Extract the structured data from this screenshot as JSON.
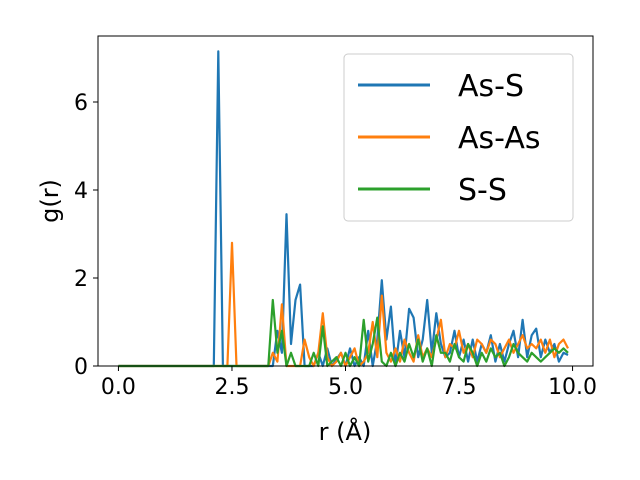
{
  "chart_data": {
    "type": "line",
    "xlabel": "r (Å)",
    "ylabel": "g(r)",
    "xlim": [
      -0.45,
      10.45
    ],
    "ylim": [
      0,
      7.5
    ],
    "xticks": [
      0.0,
      2.5,
      5.0,
      7.5,
      10.0
    ],
    "xtick_labels": [
      "0.0",
      "2.5",
      "5.0",
      "7.5",
      "10.0"
    ],
    "yticks": [
      0,
      2,
      4,
      6
    ],
    "ytick_labels": [
      "0",
      "2",
      "4",
      "6"
    ],
    "grid": false,
    "legend_position": "upper right",
    "series": [
      {
        "name": "As-S",
        "color": "#1f77b4",
        "points": [
          [
            0,
            0
          ],
          [
            2.05,
            0
          ],
          [
            2.1,
            0
          ],
          [
            2.2,
            7.15
          ],
          [
            2.3,
            0
          ],
          [
            2.4,
            0
          ],
          [
            3.4,
            0
          ],
          [
            3.5,
            0.8
          ],
          [
            3.6,
            0.3
          ],
          [
            3.7,
            3.45
          ],
          [
            3.8,
            0.5
          ],
          [
            3.9,
            1.5
          ],
          [
            4.0,
            1.85
          ],
          [
            4.1,
            0
          ],
          [
            4.3,
            0
          ],
          [
            4.4,
            0.3
          ],
          [
            4.5,
            0
          ],
          [
            4.6,
            0.4
          ],
          [
            4.7,
            0
          ],
          [
            4.9,
            0.3
          ],
          [
            5.0,
            0
          ],
          [
            5.1,
            0.4
          ],
          [
            5.2,
            0
          ],
          [
            5.3,
            0.2
          ],
          [
            5.4,
            0
          ],
          [
            5.5,
            0.8
          ],
          [
            5.6,
            0
          ],
          [
            5.7,
            0.6
          ],
          [
            5.8,
            1.95
          ],
          [
            5.9,
            0.6
          ],
          [
            6.0,
            1.35
          ],
          [
            6.1,
            0
          ],
          [
            6.2,
            0.8
          ],
          [
            6.3,
            0.2
          ],
          [
            6.4,
            1.3
          ],
          [
            6.5,
            1.1
          ],
          [
            6.6,
            0.2
          ],
          [
            6.7,
            0.6
          ],
          [
            6.8,
            1.5
          ],
          [
            6.9,
            0.3
          ],
          [
            7.0,
            1.2
          ],
          [
            7.1,
            0.5
          ],
          [
            7.2,
            0.2
          ],
          [
            7.3,
            0.3
          ],
          [
            7.4,
            0.8
          ],
          [
            7.5,
            0.2
          ],
          [
            7.6,
            0.6
          ],
          [
            7.7,
            0.1
          ],
          [
            7.8,
            0.6
          ],
          [
            7.9,
            0.1
          ],
          [
            8.0,
            0.5
          ],
          [
            8.1,
            0.3
          ],
          [
            8.2,
            0.7
          ],
          [
            8.3,
            0.1
          ],
          [
            8.4,
            0.5
          ],
          [
            8.5,
            0.1
          ],
          [
            8.6,
            0.5
          ],
          [
            8.7,
            0.8
          ],
          [
            8.8,
            0.2
          ],
          [
            8.9,
            1.05
          ],
          [
            9.0,
            0.2
          ],
          [
            9.1,
            0.7
          ],
          [
            9.2,
            0.85
          ],
          [
            9.3,
            0.2
          ],
          [
            9.4,
            0.6
          ],
          [
            9.5,
            0.3
          ],
          [
            9.6,
            0.5
          ],
          [
            9.7,
            0.1
          ],
          [
            9.8,
            0.3
          ],
          [
            9.9,
            0.25
          ]
        ]
      },
      {
        "name": "As-As",
        "color": "#ff7f0e",
        "points": [
          [
            0,
            0
          ],
          [
            2.4,
            0
          ],
          [
            2.5,
            2.8
          ],
          [
            2.6,
            0
          ],
          [
            2.7,
            0
          ],
          [
            3.3,
            0
          ],
          [
            3.4,
            0.3
          ],
          [
            3.5,
            0.1
          ],
          [
            3.6,
            1.4
          ],
          [
            3.7,
            0
          ],
          [
            3.8,
            0
          ],
          [
            4.0,
            0
          ],
          [
            4.1,
            0.6
          ],
          [
            4.2,
            0.2
          ],
          [
            4.3,
            0
          ],
          [
            4.4,
            0.3
          ],
          [
            4.5,
            1.2
          ],
          [
            4.6,
            0.2
          ],
          [
            4.7,
            0
          ],
          [
            4.8,
            0.1
          ],
          [
            4.9,
            0.3
          ],
          [
            5.0,
            0
          ],
          [
            5.2,
            0.4
          ],
          [
            5.3,
            0
          ],
          [
            5.4,
            0.1
          ],
          [
            5.5,
            0.3
          ],
          [
            5.6,
            1.0
          ],
          [
            5.7,
            0.2
          ],
          [
            5.8,
            1.6
          ],
          [
            5.9,
            0.3
          ],
          [
            6.0,
            0.1
          ],
          [
            6.1,
            0.4
          ],
          [
            6.2,
            0.1
          ],
          [
            6.3,
            0.6
          ],
          [
            6.4,
            0.3
          ],
          [
            6.5,
            0.1
          ],
          [
            6.6,
            0.7
          ],
          [
            6.7,
            0.2
          ],
          [
            6.8,
            0.4
          ],
          [
            6.9,
            0.2
          ],
          [
            7.0,
            0.6
          ],
          [
            7.1,
            1.05
          ],
          [
            7.2,
            0.2
          ],
          [
            7.3,
            0.5
          ],
          [
            7.4,
            0.4
          ],
          [
            7.5,
            0.8
          ],
          [
            7.6,
            0.3
          ],
          [
            7.7,
            0.5
          ],
          [
            7.8,
            0.2
          ],
          [
            7.9,
            0.6
          ],
          [
            8.0,
            0.5
          ],
          [
            8.1,
            0.3
          ],
          [
            8.2,
            0.6
          ],
          [
            8.3,
            0.5
          ],
          [
            8.4,
            0.2
          ],
          [
            8.5,
            0.4
          ],
          [
            8.6,
            0.6
          ],
          [
            8.7,
            0.3
          ],
          [
            8.8,
            0.5
          ],
          [
            8.9,
            0.7
          ],
          [
            9.0,
            0.4
          ],
          [
            9.1,
            0.5
          ],
          [
            9.2,
            0.4
          ],
          [
            9.3,
            0.6
          ],
          [
            9.4,
            0.3
          ],
          [
            9.5,
            0.6
          ],
          [
            9.6,
            0.2
          ],
          [
            9.7,
            0.5
          ],
          [
            9.8,
            0.6
          ],
          [
            9.9,
            0.4
          ]
        ]
      },
      {
        "name": "S-S",
        "color": "#2ca02c",
        "points": [
          [
            0,
            0
          ],
          [
            3.3,
            0
          ],
          [
            3.4,
            1.5
          ],
          [
            3.5,
            0.3
          ],
          [
            3.6,
            0.8
          ],
          [
            3.7,
            0
          ],
          [
            3.8,
            0.3
          ],
          [
            3.9,
            0
          ],
          [
            4.2,
            0
          ],
          [
            4.3,
            0.3
          ],
          [
            4.4,
            0
          ],
          [
            4.5,
            0.9
          ],
          [
            4.6,
            0
          ],
          [
            4.8,
            0.2
          ],
          [
            4.9,
            0
          ],
          [
            5.0,
            0.3
          ],
          [
            5.1,
            0
          ],
          [
            5.2,
            0.2
          ],
          [
            5.3,
            0
          ],
          [
            5.4,
            1.05
          ],
          [
            5.5,
            0.1
          ],
          [
            5.6,
            0.5
          ],
          [
            5.7,
            1.1
          ],
          [
            5.8,
            0.1
          ],
          [
            5.9,
            0
          ],
          [
            6.0,
            0.3
          ],
          [
            6.1,
            0
          ],
          [
            6.2,
            0.3
          ],
          [
            6.3,
            0.1
          ],
          [
            6.4,
            0.5
          ],
          [
            6.5,
            0.2
          ],
          [
            6.6,
            0.6
          ],
          [
            6.7,
            0.1
          ],
          [
            6.8,
            0.4
          ],
          [
            6.9,
            0
          ],
          [
            7.0,
            0.7
          ],
          [
            7.1,
            0.3
          ],
          [
            7.2,
            0.3
          ],
          [
            7.3,
            0.1
          ],
          [
            7.4,
            0.5
          ],
          [
            7.5,
            0.2
          ],
          [
            7.6,
            0.1
          ],
          [
            7.7,
            0.5
          ],
          [
            7.8,
            0.3
          ],
          [
            7.9,
            0
          ],
          [
            8.0,
            0.3
          ],
          [
            8.1,
            0.1
          ],
          [
            8.2,
            0.4
          ],
          [
            8.3,
            0.2
          ],
          [
            8.4,
            0.3
          ],
          [
            8.5,
            0
          ],
          [
            8.6,
            0.2
          ],
          [
            8.7,
            0.5
          ],
          [
            8.8,
            0.3
          ],
          [
            8.9,
            0.2
          ],
          [
            9.0,
            0.1
          ],
          [
            9.1,
            0.3
          ],
          [
            9.2,
            0.2
          ],
          [
            9.3,
            0.1
          ],
          [
            9.4,
            0.2
          ],
          [
            9.5,
            0.3
          ],
          [
            9.6,
            0.4
          ],
          [
            9.7,
            0.3
          ],
          [
            9.8,
            0.4
          ],
          [
            9.9,
            0.3
          ]
        ]
      }
    ]
  }
}
